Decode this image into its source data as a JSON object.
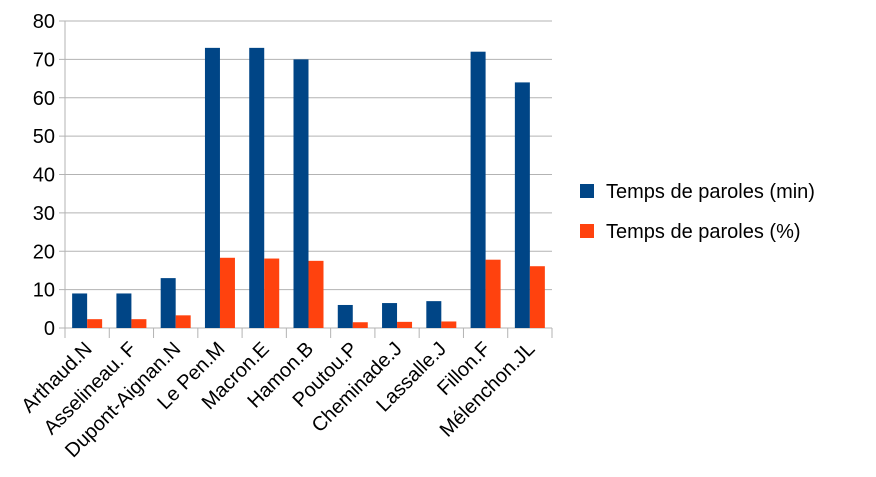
{
  "chart_data": {
    "type": "bar",
    "categories": [
      "Arthaud.N",
      "Asselineau. F",
      "Dupont-Aignan.N",
      "Le Pen.M",
      "Macron.E",
      "Hamon.B",
      "Poutou.P",
      "Cheminade.J",
      "Lassalle.J",
      "Fillon.F",
      "Mélenchon.JL"
    ],
    "series": [
      {
        "name": "Temps de paroles (min)",
        "color": "#004586",
        "values": [
          9,
          9,
          13,
          73,
          73,
          70,
          6,
          6.5,
          7,
          72,
          64
        ]
      },
      {
        "name": "Temps de paroles (%)",
        "color": "#ff420e",
        "values": [
          2.3,
          2.3,
          3.3,
          18.3,
          18.1,
          17.5,
          1.5,
          1.6,
          1.7,
          17.8,
          16.1
        ]
      }
    ],
    "ylim": [
      0,
      80
    ],
    "yticks": [
      0,
      10,
      20,
      30,
      40,
      50,
      60,
      70,
      80
    ],
    "grid": true,
    "legend_position": "right"
  }
}
